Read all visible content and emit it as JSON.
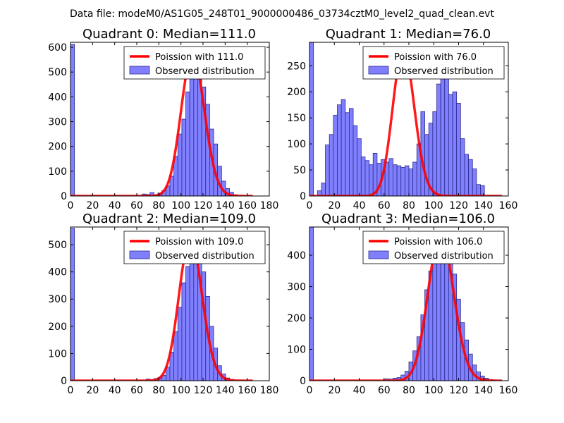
{
  "suptitle": "Data file: modeM0/AS1G05_248T01_9000000486_03734cztM0_level2_quad_clean.evt",
  "colors": {
    "bar_fill": "#8080ff",
    "bar_edge": "#2a2a8c",
    "curve": "#ff0000",
    "axis": "#000000"
  },
  "legend_observed": "Observed distribution",
  "chart_data": [
    {
      "type": "bar",
      "title": "Quadrant 0: Median=111.0",
      "legend_poisson": "Poission with 111.0",
      "median": 111.0,
      "xlim": [
        0,
        180
      ],
      "ylim": [
        0,
        620
      ],
      "xticks": [
        0,
        20,
        40,
        60,
        80,
        100,
        120,
        140,
        160,
        180
      ],
      "yticks": [
        0,
        100,
        200,
        300,
        400,
        500,
        600
      ],
      "bin_width": 3.6,
      "bins_x": [
        0,
        64.8,
        68.4,
        72,
        75.6,
        79.2,
        82.8,
        86.4,
        90,
        93.6,
        97.2,
        100.8,
        104.4,
        108,
        111.6,
        115.2,
        118.8,
        122.4,
        126,
        129.6,
        133.2,
        136.8,
        140.4,
        144,
        147.6
      ],
      "counts": [
        612,
        8,
        6,
        14,
        4,
        12,
        22,
        40,
        80,
        160,
        250,
        310,
        420,
        510,
        560,
        530,
        440,
        370,
        270,
        210,
        120,
        60,
        30,
        15,
        5
      ],
      "curve_scale": 570,
      "curve_xmax": 165
    },
    {
      "type": "bar",
      "title": "Quadrant 1: Median=76.0",
      "legend_poisson": "Poission with 76.0",
      "median": 76.0,
      "xlim": [
        0,
        160
      ],
      "ylim": [
        0,
        295
      ],
      "xticks": [
        0,
        20,
        40,
        60,
        80,
        100,
        120,
        140,
        160
      ],
      "yticks": [
        0,
        50,
        100,
        150,
        200,
        250
      ],
      "bin_width": 3.2,
      "bins_x": [
        0,
        6.4,
        9.6,
        12.8,
        16,
        19.2,
        22.4,
        25.6,
        28.8,
        32,
        35.2,
        38.4,
        41.6,
        44.8,
        48,
        51.2,
        54.4,
        57.6,
        60.8,
        64,
        67.2,
        70.4,
        73.6,
        76.8,
        80,
        83.2,
        86.4,
        89.6,
        92.8,
        96,
        99.2,
        102.4,
        105.6,
        108.8,
        112,
        115.2,
        118.4,
        121.6,
        124.8,
        128,
        131.2,
        134.4,
        137.6
      ],
      "counts": [
        295,
        10,
        25,
        98,
        118,
        155,
        175,
        185,
        160,
        168,
        135,
        110,
        75,
        68,
        60,
        82,
        63,
        70,
        65,
        72,
        60,
        58,
        55,
        58,
        52,
        65,
        100,
        162,
        118,
        140,
        162,
        215,
        228,
        240,
        195,
        200,
        178,
        110,
        80,
        70,
        52,
        22,
        20
      ],
      "curve_scale": 280,
      "curve_xmax": 155
    },
    {
      "type": "bar",
      "title": "Quadrant 2: Median=109.0",
      "legend_poisson": "Poission with 109.0",
      "median": 109.0,
      "xlim": [
        0,
        180
      ],
      "ylim": [
        0,
        565
      ],
      "xticks": [
        0,
        20,
        40,
        60,
        80,
        100,
        120,
        140,
        160,
        180
      ],
      "yticks": [
        0,
        100,
        200,
        300,
        400,
        500
      ],
      "bin_width": 3.6,
      "bins_x": [
        0,
        68.4,
        72,
        75.6,
        79.2,
        82.8,
        86.4,
        90,
        93.6,
        97.2,
        100.8,
        104.4,
        108,
        111.6,
        115.2,
        118.8,
        122.4,
        126,
        129.6,
        133.2,
        136.8,
        140.4,
        144
      ],
      "counts": [
        560,
        6,
        4,
        8,
        12,
        20,
        50,
        105,
        180,
        270,
        360,
        420,
        470,
        520,
        480,
        400,
        310,
        200,
        120,
        55,
        25,
        10,
        5
      ],
      "curve_scale": 520,
      "curve_xmax": 165
    },
    {
      "type": "bar",
      "title": "Quadrant 3: Median=106.0",
      "legend_poisson": "Poission with 106.0",
      "median": 106.0,
      "xlim": [
        0,
        160
      ],
      "ylim": [
        0,
        490
      ],
      "xticks": [
        0,
        20,
        40,
        60,
        80,
        100,
        120,
        140,
        160
      ],
      "yticks": [
        0,
        100,
        200,
        300,
        400
      ],
      "bin_width": 3.2,
      "bins_x": [
        0,
        60.8,
        64,
        67.2,
        70.4,
        73.6,
        76.8,
        80,
        83.2,
        86.4,
        89.6,
        92.8,
        96,
        99.2,
        102.4,
        105.6,
        108.8,
        112,
        115.2,
        118.4,
        121.6,
        124.8,
        128,
        131.2,
        134.4,
        137.6,
        140.8,
        144,
        147.2
      ],
      "counts": [
        490,
        6,
        5,
        8,
        10,
        18,
        30,
        60,
        95,
        140,
        210,
        290,
        350,
        430,
        440,
        470,
        450,
        400,
        340,
        260,
        185,
        130,
        85,
        50,
        28,
        15,
        8,
        4,
        2
      ],
      "curve_scale": 465,
      "curve_xmax": 155
    }
  ]
}
